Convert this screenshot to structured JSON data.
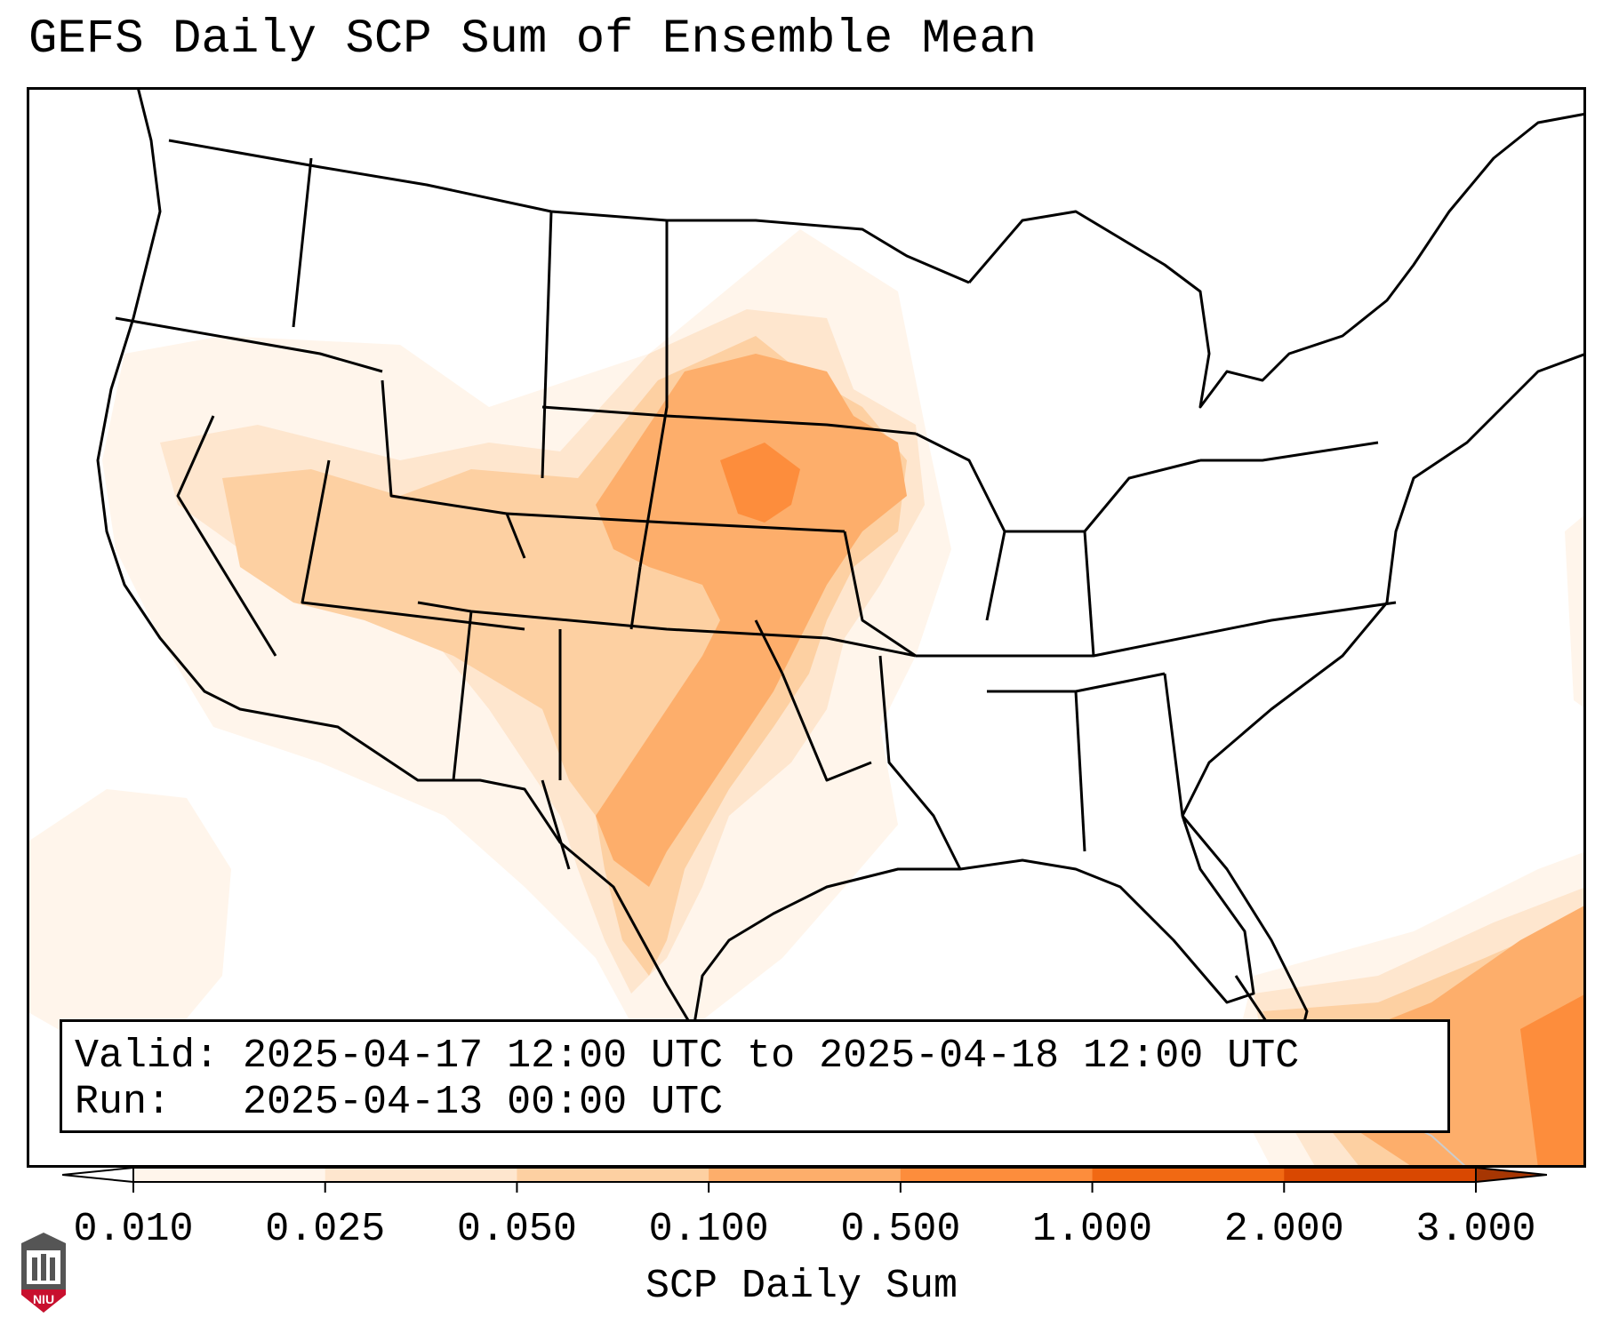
{
  "title": "GEFS Daily SCP Sum of Ensemble Mean",
  "legend": {
    "valid": "Valid: 2025-04-17 12:00 UTC to 2025-04-18 12:00 UTC",
    "run": "Run:   2025-04-13 00:00 UTC"
  },
  "colorbar": {
    "label": "SCP Daily Sum",
    "ticks": [
      "0.010",
      "0.025",
      "0.050",
      "0.100",
      "0.500",
      "1.000",
      "2.000",
      "3.000"
    ],
    "colors": [
      "#fff5eb",
      "#fee6ce",
      "#fdd0a2",
      "#fdae6b",
      "#fd8d3c",
      "#f16913",
      "#d94801"
    ],
    "extend_max_color": "#a63603",
    "extend_min_color": "#ffffff"
  },
  "logo": {
    "text": "NIU",
    "colors": {
      "shield": "#555555",
      "band": "#c8102e"
    }
  }
}
